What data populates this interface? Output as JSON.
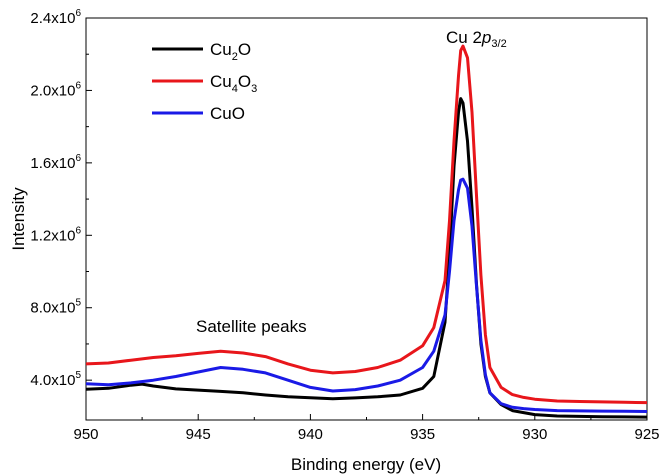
{
  "chart_data": {
    "type": "line",
    "xlabel": "Binding energy (eV)",
    "ylabel": "Intensity",
    "xlim": [
      950,
      925
    ],
    "ylim": [
      180000,
      2400000
    ],
    "x_ticks": [
      950,
      945,
      940,
      935,
      930,
      925
    ],
    "y_ticks": [
      400000,
      800000,
      1200000,
      1600000,
      2000000,
      2400000
    ],
    "y_tick_labels": [
      {
        "mant": "4.0x10",
        "exp": "5"
      },
      {
        "mant": "8.0x10",
        "exp": "5"
      },
      {
        "mant": "1.2x10",
        "exp": "6"
      },
      {
        "mant": "1.6x10",
        "exp": "6"
      },
      {
        "mant": "2.0x10",
        "exp": "6"
      },
      {
        "mant": "2.4x10",
        "exp": "6"
      }
    ],
    "legend_position": "top-left",
    "series": [
      {
        "name": "Cu2O",
        "label_parts": [
          {
            "t": "Cu"
          },
          {
            "t": "2",
            "sub": true
          },
          {
            "t": "O"
          }
        ],
        "color": "#000000",
        "x": [
          950,
          949,
          948,
          947.5,
          947,
          946,
          945,
          944,
          943,
          942,
          941,
          940,
          939,
          938,
          937,
          936,
          935,
          934.5,
          934,
          933.8,
          933.6,
          933.4,
          933.3,
          933.2,
          933.0,
          932.8,
          932.6,
          932.4,
          932.2,
          932,
          931.5,
          931,
          930,
          929,
          928,
          927,
          926,
          925
        ],
        "y": [
          350000,
          355000,
          372000,
          378000,
          368000,
          352000,
          345000,
          338000,
          330000,
          318000,
          308000,
          303000,
          297000,
          302000,
          308000,
          318000,
          355000,
          420000,
          720000,
          1100000,
          1580000,
          1880000,
          1955000,
          1930000,
          1720000,
          1350000,
          930000,
          600000,
          420000,
          330000,
          265000,
          232000,
          210000,
          202000,
          200000,
          198000,
          197000,
          196000
        ]
      },
      {
        "name": "Cu4O3",
        "label_parts": [
          {
            "t": "Cu"
          },
          {
            "t": "4",
            "sub": true
          },
          {
            "t": "O"
          },
          {
            "t": "3",
            "sub": true
          }
        ],
        "color": "#e8161b",
        "x": [
          950,
          949,
          948,
          947,
          946,
          945,
          944,
          943,
          942,
          941,
          940,
          939,
          938,
          937,
          936,
          935,
          934.5,
          934,
          933.8,
          933.6,
          933.4,
          933.3,
          933.2,
          933.0,
          932.8,
          932.6,
          932.4,
          932.2,
          932,
          931.5,
          931,
          930.5,
          930,
          929,
          928,
          927,
          926,
          925
        ],
        "y": [
          490000,
          495000,
          510000,
          525000,
          535000,
          548000,
          560000,
          550000,
          530000,
          490000,
          455000,
          440000,
          448000,
          470000,
          510000,
          590000,
          690000,
          950000,
          1280000,
          1720000,
          2080000,
          2220000,
          2245000,
          2180000,
          1880000,
          1420000,
          980000,
          650000,
          470000,
          360000,
          320000,
          305000,
          295000,
          285000,
          282000,
          280000,
          278000,
          276000
        ]
      },
      {
        "name": "CuO",
        "label_parts": [
          {
            "t": "CuO"
          }
        ],
        "color": "#1a1ae6",
        "x": [
          950,
          949,
          948,
          947,
          946,
          945,
          944,
          943,
          942,
          941,
          940,
          939,
          938,
          937,
          936,
          935,
          934.5,
          934,
          933.8,
          933.6,
          933.4,
          933.3,
          933.2,
          933.0,
          932.8,
          932.6,
          932.4,
          932.2,
          932,
          931.5,
          931,
          930.5,
          930,
          929,
          928,
          927,
          926,
          925
        ],
        "y": [
          380000,
          375000,
          385000,
          400000,
          420000,
          445000,
          470000,
          460000,
          440000,
          400000,
          360000,
          340000,
          348000,
          368000,
          400000,
          470000,
          560000,
          760000,
          1000000,
          1280000,
          1450000,
          1505000,
          1510000,
          1460000,
          1250000,
          920000,
          620000,
          430000,
          330000,
          270000,
          250000,
          243000,
          238000,
          232000,
          230000,
          229000,
          228000,
          227000
        ]
      }
    ],
    "annotations": {
      "satellite": "Satellite peaks",
      "peak_base": "Cu 2",
      "peak_italic": "p",
      "peak_sub": "3/2"
    }
  }
}
